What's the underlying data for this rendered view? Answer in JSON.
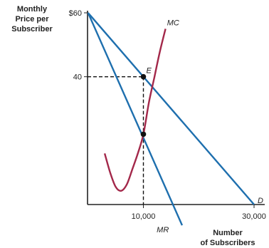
{
  "chart_data": {
    "type": "line",
    "title": "",
    "ylabel_lines": [
      "Monthly",
      "Price per",
      "Subscriber"
    ],
    "xlabel_lines": [
      "Number",
      "of Subscribers"
    ],
    "x_ticks": [
      {
        "value": 10000,
        "label": "10,000"
      },
      {
        "value": 30000,
        "label": "30,000"
      }
    ],
    "y_ticks": [
      {
        "value": 60,
        "label": "$60"
      },
      {
        "value": 40,
        "label": "40"
      }
    ],
    "xlim": [
      -2500,
      30000
    ],
    "ylim": [
      0,
      60
    ],
    "colors": {
      "demand": "#1e6fae",
      "mr": "#1e6fae",
      "mc": "#a3284a",
      "axis": "#222222",
      "point": "#111111"
    },
    "series": [
      {
        "name": "D",
        "values": [
          {
            "x": 0,
            "y": 60
          },
          {
            "x": 30000,
            "y": 0
          }
        ]
      },
      {
        "name": "MR",
        "values": [
          {
            "x": 0,
            "y": 60
          },
          {
            "x": 17000,
            "y": -6.5
          }
        ]
      },
      {
        "name": "MC",
        "values": [
          {
            "x": 3000,
            "y": 16
          },
          {
            "x": 4000,
            "y": 10
          },
          {
            "x": 5000,
            "y": 5.5
          },
          {
            "x": 6000,
            "y": 4.3
          },
          {
            "x": 7000,
            "y": 6.3
          },
          {
            "x": 8000,
            "y": 11
          },
          {
            "x": 9000,
            "y": 16
          },
          {
            "x": 10000,
            "y": 22
          },
          {
            "x": 11000,
            "y": 32
          },
          {
            "x": 12000,
            "y": 40
          },
          {
            "x": 13000,
            "y": 48
          },
          {
            "x": 14000,
            "y": 55
          }
        ]
      }
    ],
    "points": [
      {
        "name": "E",
        "x": 10000,
        "y": 40
      },
      {
        "name": "",
        "x": 10000,
        "y": 22
      }
    ],
    "annotations": [
      {
        "text": "E",
        "x": 10000,
        "y": 40
      },
      {
        "text": "MC",
        "x": 13500,
        "y": 57
      },
      {
        "text": "MR",
        "x": 13500,
        "y": -7.8
      },
      {
        "text": "D",
        "x": 30000,
        "y": 0
      }
    ]
  }
}
